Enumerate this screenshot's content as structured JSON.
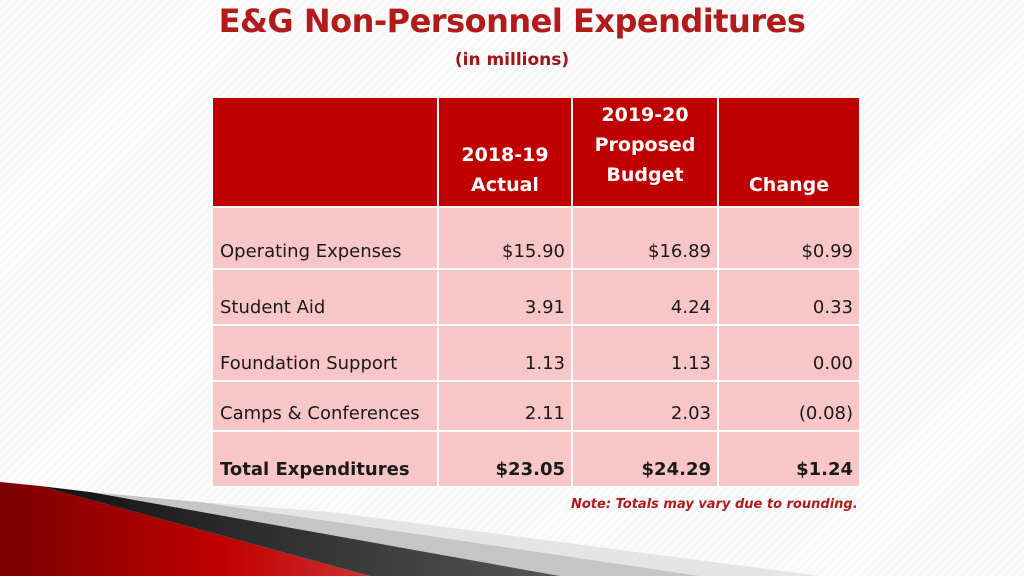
{
  "slide": {
    "title": "E&G Non-Personnel Expenditures",
    "subtitle": "(in millions)"
  },
  "table": {
    "headers": [
      {
        "lines": [
          ""
        ]
      },
      {
        "lines": [
          "2018-19",
          "Actual"
        ]
      },
      {
        "lines": [
          "2019-20",
          "Proposed",
          "Budget"
        ]
      },
      {
        "lines": [
          "Change"
        ]
      }
    ],
    "rows": [
      {
        "label": "Operating Expenses",
        "actual": "$15.90",
        "proposed": "$16.89",
        "change": "$0.99"
      },
      {
        "label": "Student Aid",
        "actual": "3.91",
        "proposed": "4.24",
        "change": "0.33"
      },
      {
        "label": "Foundation Support",
        "actual": "1.13",
        "proposed": "1.13",
        "change": "0.00"
      },
      {
        "label": "Camps & Conferences",
        "actual": "2.11",
        "proposed": "2.03",
        "change": "(0.08)"
      }
    ],
    "total": {
      "label": "Total Expenditures",
      "actual": "$23.05",
      "proposed": "$24.29",
      "change": "$1.24"
    }
  },
  "note": "Note: Totals may vary due to rounding.",
  "colors": {
    "header_bg": "#c00000",
    "cell_bg": "#f8c6c6",
    "title": "#b31a1a"
  }
}
